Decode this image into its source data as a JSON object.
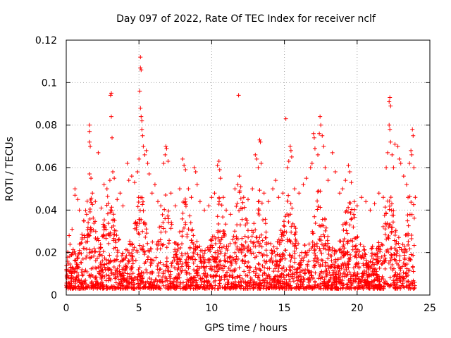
{
  "chart_data": {
    "type": "scatter",
    "title": "Day 097 of 2022, Rate Of TEC Index for receiver nclf",
    "xlabel": "GPS time / hours",
    "ylabel": "ROTI / TECUs",
    "xlim": [
      0,
      25
    ],
    "ylim": [
      0,
      0.12
    ],
    "x_ticks": [
      0,
      5,
      10,
      15,
      20,
      25
    ],
    "x_tick_labels": [
      "0",
      "5",
      "10",
      "15",
      "20",
      "25"
    ],
    "y_ticks": [
      0,
      0.02,
      0.04,
      0.06,
      0.08,
      0.1,
      0.12
    ],
    "y_tick_labels": [
      "0",
      "0.02",
      "0.04",
      "0.06",
      "0.08",
      "0.1",
      "0.12"
    ],
    "grid": true,
    "marker": "+",
    "marker_color": "#ff0000",
    "series": [
      {
        "name": "ROTI",
        "points": [
          [
            0.2,
            0.028
          ],
          [
            0.4,
            0.031
          ],
          [
            0.6,
            0.05
          ],
          [
            0.6,
            0.047
          ],
          [
            0.8,
            0.045
          ],
          [
            0.9,
            0.04
          ],
          [
            1.2,
            0.035
          ],
          [
            1.4,
            0.038
          ],
          [
            1.6,
            0.057
          ],
          [
            1.6,
            0.08
          ],
          [
            1.6,
            0.077
          ],
          [
            1.6,
            0.072
          ],
          [
            1.65,
            0.07
          ],
          [
            1.7,
            0.055
          ],
          [
            1.8,
            0.048
          ],
          [
            2.0,
            0.044
          ],
          [
            2.2,
            0.067
          ],
          [
            2.4,
            0.041
          ],
          [
            2.6,
            0.052
          ],
          [
            2.8,
            0.05
          ],
          [
            3.0,
            0.054
          ],
          [
            3.05,
            0.094
          ],
          [
            3.1,
            0.095
          ],
          [
            3.1,
            0.084
          ],
          [
            3.15,
            0.074
          ],
          [
            3.2,
            0.058
          ],
          [
            3.3,
            0.055
          ],
          [
            3.5,
            0.045
          ],
          [
            3.7,
            0.048
          ],
          [
            3.9,
            0.042
          ],
          [
            4.2,
            0.062
          ],
          [
            4.3,
            0.054
          ],
          [
            4.5,
            0.056
          ],
          [
            4.7,
            0.053
          ],
          [
            4.9,
            0.058
          ],
          [
            5.0,
            0.064
          ],
          [
            5.05,
            0.096
          ],
          [
            5.1,
            0.112
          ],
          [
            5.1,
            0.107
          ],
          [
            5.15,
            0.106
          ],
          [
            5.1,
            0.088
          ],
          [
            5.15,
            0.084
          ],
          [
            5.2,
            0.082
          ],
          [
            5.2,
            0.078
          ],
          [
            5.25,
            0.075
          ],
          [
            5.3,
            0.07
          ],
          [
            5.4,
            0.066
          ],
          [
            5.5,
            0.068
          ],
          [
            5.6,
            0.062
          ],
          [
            5.7,
            0.057
          ],
          [
            5.9,
            0.048
          ],
          [
            6.1,
            0.052
          ],
          [
            6.3,
            0.044
          ],
          [
            6.5,
            0.042
          ],
          [
            6.7,
            0.062
          ],
          [
            6.8,
            0.066
          ],
          [
            6.85,
            0.07
          ],
          [
            6.9,
            0.069
          ],
          [
            7.0,
            0.063
          ],
          [
            7.2,
            0.048
          ],
          [
            7.5,
            0.042
          ],
          [
            7.8,
            0.05
          ],
          [
            8.0,
            0.064
          ],
          [
            8.1,
            0.061
          ],
          [
            8.2,
            0.059
          ],
          [
            8.4,
            0.05
          ],
          [
            8.6,
            0.046
          ],
          [
            8.8,
            0.06
          ],
          [
            8.9,
            0.058
          ],
          [
            9.0,
            0.052
          ],
          [
            9.2,
            0.044
          ],
          [
            9.5,
            0.04
          ],
          [
            9.8,
            0.042
          ],
          [
            10.0,
            0.046
          ],
          [
            10.2,
            0.048
          ],
          [
            10.4,
            0.061
          ],
          [
            10.5,
            0.063
          ],
          [
            10.55,
            0.059
          ],
          [
            10.6,
            0.055
          ],
          [
            10.8,
            0.046
          ],
          [
            11.0,
            0.04
          ],
          [
            11.3,
            0.038
          ],
          [
            11.6,
            0.05
          ],
          [
            11.8,
            0.052
          ],
          [
            11.85,
            0.094
          ],
          [
            11.9,
            0.056
          ],
          [
            12.0,
            0.051
          ],
          [
            12.2,
            0.046
          ],
          [
            12.5,
            0.045
          ],
          [
            12.8,
            0.05
          ],
          [
            13.0,
            0.066
          ],
          [
            13.1,
            0.064
          ],
          [
            13.2,
            0.06
          ],
          [
            13.3,
            0.073
          ],
          [
            13.35,
            0.072
          ],
          [
            13.4,
            0.062
          ],
          [
            13.6,
            0.048
          ],
          [
            13.9,
            0.044
          ],
          [
            14.2,
            0.05
          ],
          [
            14.4,
            0.054
          ],
          [
            14.6,
            0.046
          ],
          [
            14.9,
            0.048
          ],
          [
            15.1,
            0.083
          ],
          [
            15.2,
            0.06
          ],
          [
            15.3,
            0.063
          ],
          [
            15.4,
            0.07
          ],
          [
            15.45,
            0.068
          ],
          [
            15.5,
            0.065
          ],
          [
            15.7,
            0.05
          ],
          [
            16.0,
            0.048
          ],
          [
            16.3,
            0.052
          ],
          [
            16.5,
            0.055
          ],
          [
            16.8,
            0.06
          ],
          [
            16.9,
            0.062
          ],
          [
            17.0,
            0.076
          ],
          [
            17.05,
            0.074
          ],
          [
            17.1,
            0.069
          ],
          [
            17.3,
            0.066
          ],
          [
            17.4,
            0.076
          ],
          [
            17.45,
            0.084
          ],
          [
            17.5,
            0.08
          ],
          [
            17.6,
            0.075
          ],
          [
            17.7,
            0.07
          ],
          [
            17.8,
            0.06
          ],
          [
            18.0,
            0.054
          ],
          [
            18.3,
            0.067
          ],
          [
            18.5,
            0.058
          ],
          [
            18.8,
            0.048
          ],
          [
            19.0,
            0.05
          ],
          [
            19.2,
            0.054
          ],
          [
            19.4,
            0.061
          ],
          [
            19.5,
            0.058
          ],
          [
            19.6,
            0.053
          ],
          [
            19.8,
            0.044
          ],
          [
            20.0,
            0.042
          ],
          [
            20.3,
            0.046
          ],
          [
            20.6,
            0.044
          ],
          [
            20.9,
            0.04
          ],
          [
            21.2,
            0.043
          ],
          [
            21.5,
            0.048
          ],
          [
            21.8,
            0.046
          ],
          [
            22.0,
            0.06
          ],
          [
            22.1,
            0.067
          ],
          [
            22.2,
            0.091
          ],
          [
            22.25,
            0.093
          ],
          [
            22.3,
            0.089
          ],
          [
            22.2,
            0.08
          ],
          [
            22.25,
            0.078
          ],
          [
            22.3,
            0.072
          ],
          [
            22.4,
            0.066
          ],
          [
            22.5,
            0.06
          ],
          [
            22.6,
            0.071
          ],
          [
            22.8,
            0.07
          ],
          [
            22.9,
            0.064
          ],
          [
            23.0,
            0.062
          ],
          [
            23.2,
            0.056
          ],
          [
            23.4,
            0.052
          ],
          [
            23.5,
            0.046
          ],
          [
            23.6,
            0.062
          ],
          [
            23.7,
            0.068
          ],
          [
            23.75,
            0.066
          ],
          [
            23.8,
            0.078
          ],
          [
            23.85,
            0.075
          ],
          [
            23.9,
            0.06
          ],
          [
            24.0,
            0.046
          ]
        ]
      }
    ]
  }
}
